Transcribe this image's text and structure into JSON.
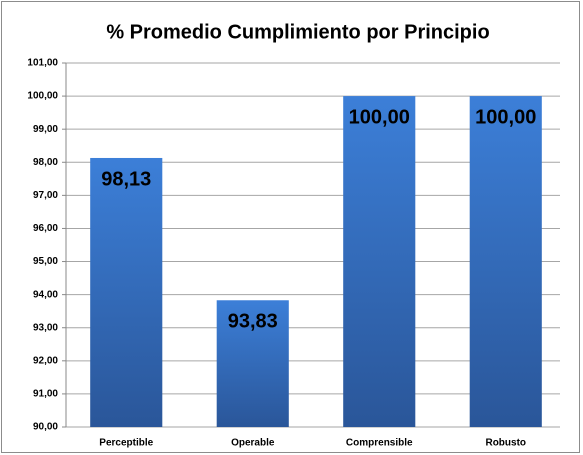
{
  "chart_data": {
    "type": "bar",
    "title": "% Promedio Cumplimiento por Principio",
    "categories": [
      "Perceptible",
      "Operable",
      "Comprensible",
      "Robusto"
    ],
    "values": [
      98.13,
      93.83,
      100,
      100
    ],
    "value_labels": [
      "98,13",
      "93,83",
      "100,00",
      "100,00"
    ],
    "color": "#3570c0",
    "ylim": [
      90,
      101
    ],
    "yticks": [
      {
        "value": 90,
        "label": "90,00"
      },
      {
        "value": 91,
        "label": "91,00"
      },
      {
        "value": 92,
        "label": "92,00"
      },
      {
        "value": 93,
        "label": "93,00"
      },
      {
        "value": 94,
        "label": "94,00"
      },
      {
        "value": 95,
        "label": "95,00"
      },
      {
        "value": 96,
        "label": "96,00"
      },
      {
        "value": 97,
        "label": "97,00"
      },
      {
        "value": 98,
        "label": "98,00"
      },
      {
        "value": 99,
        "label": "99,00"
      },
      {
        "value": 100,
        "label": "100,00"
      },
      {
        "value": 101,
        "label": "101,00"
      }
    ],
    "grid": true
  }
}
